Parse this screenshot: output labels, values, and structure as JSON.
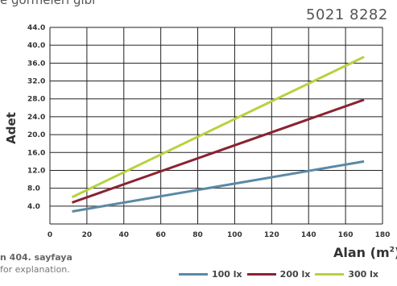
{
  "header": {
    "top_clip": "e görmeleri gibi",
    "code": "5021 8282"
  },
  "notes": {
    "line1": "n 404. sayfaya",
    "line2": "for explanation."
  },
  "chart_data": {
    "type": "line",
    "title": "",
    "xlabel": "Alan (m",
    "xlabel_sup": "2",
    "xlabel_close": ")",
    "ylabel": "Adet",
    "xlim": [
      0,
      180
    ],
    "ylim": [
      0,
      44
    ],
    "xticks": [
      0,
      20,
      40,
      60,
      80,
      100,
      120,
      140,
      160,
      180
    ],
    "xtick_labels": [
      "0",
      "20",
      "40",
      "60",
      "80",
      "100",
      "120",
      "140",
      "160",
      "180"
    ],
    "yticks": [
      0,
      4,
      8,
      12,
      16,
      20,
      24,
      28,
      32,
      36,
      40,
      44
    ],
    "ytick_labels": [
      "",
      "4.0",
      "8.0",
      "12.0",
      "16.0",
      "20.0",
      "24.0",
      "28.0",
      "32.0",
      "36.0",
      "40.0",
      "44.0"
    ],
    "grid": true,
    "legend_position": "bottom-right",
    "series": [
      {
        "name": "100 lx",
        "color": "#5b89a6",
        "x": [
          12,
          170
        ],
        "y": [
          2.8,
          14.0
        ]
      },
      {
        "name": "200 lx",
        "color": "#8a2232",
        "x": [
          12,
          170
        ],
        "y": [
          4.8,
          27.8
        ]
      },
      {
        "name": "300 lx",
        "color": "#b6d23d",
        "x": [
          12,
          170
        ],
        "y": [
          6.0,
          37.4
        ]
      }
    ]
  }
}
